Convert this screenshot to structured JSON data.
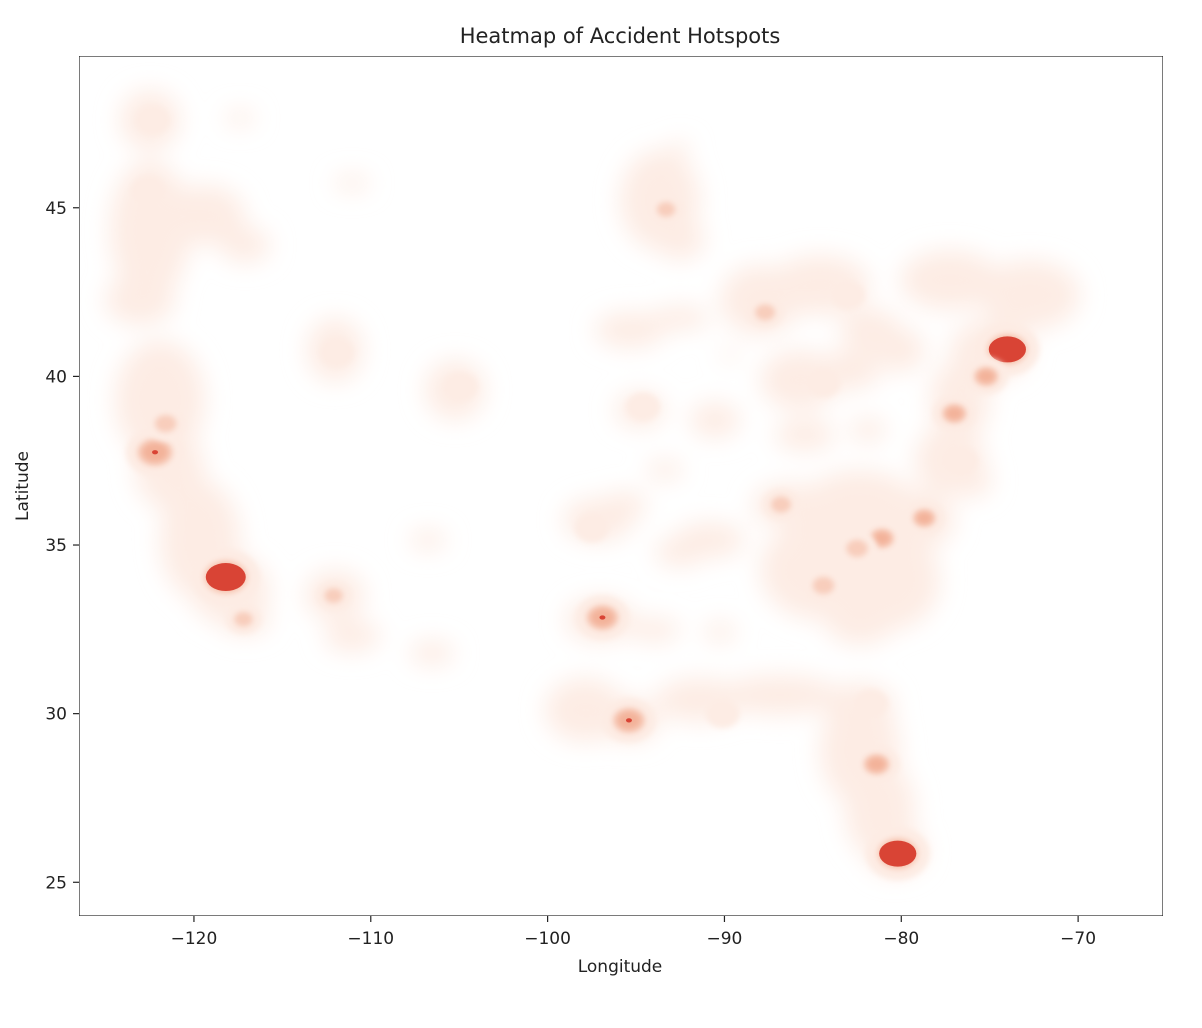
{
  "chart_data": {
    "type": "heatmap",
    "title": "Heatmap of Accident Hotspots",
    "xlabel": "Longitude",
    "ylabel": "Latitude",
    "xlim": [
      -126.5,
      -65.2
    ],
    "ylim": [
      24.0,
      49.5
    ],
    "x_ticks": [
      -120,
      -110,
      -100,
      -90,
      -80,
      -70
    ],
    "x_tick_labels": [
      "−120",
      "−110",
      "−100",
      "−90",
      "−80",
      "−70"
    ],
    "y_ticks": [
      25,
      30,
      35,
      40,
      45
    ],
    "y_tick_labels": [
      "25",
      "30",
      "35",
      "40",
      "45"
    ],
    "grid": false,
    "colormap": "Reds",
    "colors": {
      "low": "#fdece4",
      "mid": "#f3b29a",
      "high": "#d94435"
    },
    "hotspots": [
      {
        "lon": -118.2,
        "lat": 34.05,
        "intensity": 1.0
      },
      {
        "lon": -80.2,
        "lat": 25.85,
        "intensity": 0.9
      },
      {
        "lon": -74.0,
        "lat": 40.8,
        "intensity": 0.9
      },
      {
        "lon": -122.2,
        "lat": 37.75,
        "intensity": 0.75
      },
      {
        "lon": -96.9,
        "lat": 32.85,
        "intensity": 0.65
      },
      {
        "lon": -95.4,
        "lat": 29.8,
        "intensity": 0.65
      },
      {
        "lon": -81.4,
        "lat": 28.5,
        "intensity": 0.45
      },
      {
        "lon": -75.2,
        "lat": 40.0,
        "intensity": 0.4
      },
      {
        "lon": -77.0,
        "lat": 38.9,
        "intensity": 0.4
      },
      {
        "lon": -81.1,
        "lat": 35.2,
        "intensity": 0.4
      },
      {
        "lon": -78.7,
        "lat": 35.8,
        "intensity": 0.35
      },
      {
        "lon": -82.5,
        "lat": 34.9,
        "intensity": 0.3
      },
      {
        "lon": -84.4,
        "lat": 33.8,
        "intensity": 0.3
      },
      {
        "lon": -121.6,
        "lat": 38.6,
        "intensity": 0.3
      },
      {
        "lon": -87.7,
        "lat": 41.9,
        "intensity": 0.25
      },
      {
        "lon": -86.8,
        "lat": 36.2,
        "intensity": 0.25
      },
      {
        "lon": -117.2,
        "lat": 32.8,
        "intensity": 0.2
      },
      {
        "lon": -112.1,
        "lat": 33.5,
        "intensity": 0.2
      },
      {
        "lon": -93.3,
        "lat": 44.95,
        "intensity": 0.2
      },
      {
        "lon": -122.3,
        "lat": 47.6,
        "intensity": 0.15
      },
      {
        "lon": -122.6,
        "lat": 45.5,
        "intensity": 0.15
      },
      {
        "lon": -104.9,
        "lat": 39.7,
        "intensity": 0.15
      },
      {
        "lon": -111.9,
        "lat": 40.7,
        "intensity": 0.15
      },
      {
        "lon": -83.0,
        "lat": 42.4,
        "intensity": 0.15
      },
      {
        "lon": -97.5,
        "lat": 35.5,
        "intensity": 0.15
      },
      {
        "lon": -90.1,
        "lat": 30.0,
        "intensity": 0.15
      },
      {
        "lon": -81.7,
        "lat": 30.3,
        "intensity": 0.15
      },
      {
        "lon": -94.6,
        "lat": 39.1,
        "intensity": 0.15
      },
      {
        "lon": -84.4,
        "lat": 39.8,
        "intensity": 0.15
      },
      {
        "lon": -76.6,
        "lat": 37.5,
        "intensity": 0.15
      }
    ]
  }
}
